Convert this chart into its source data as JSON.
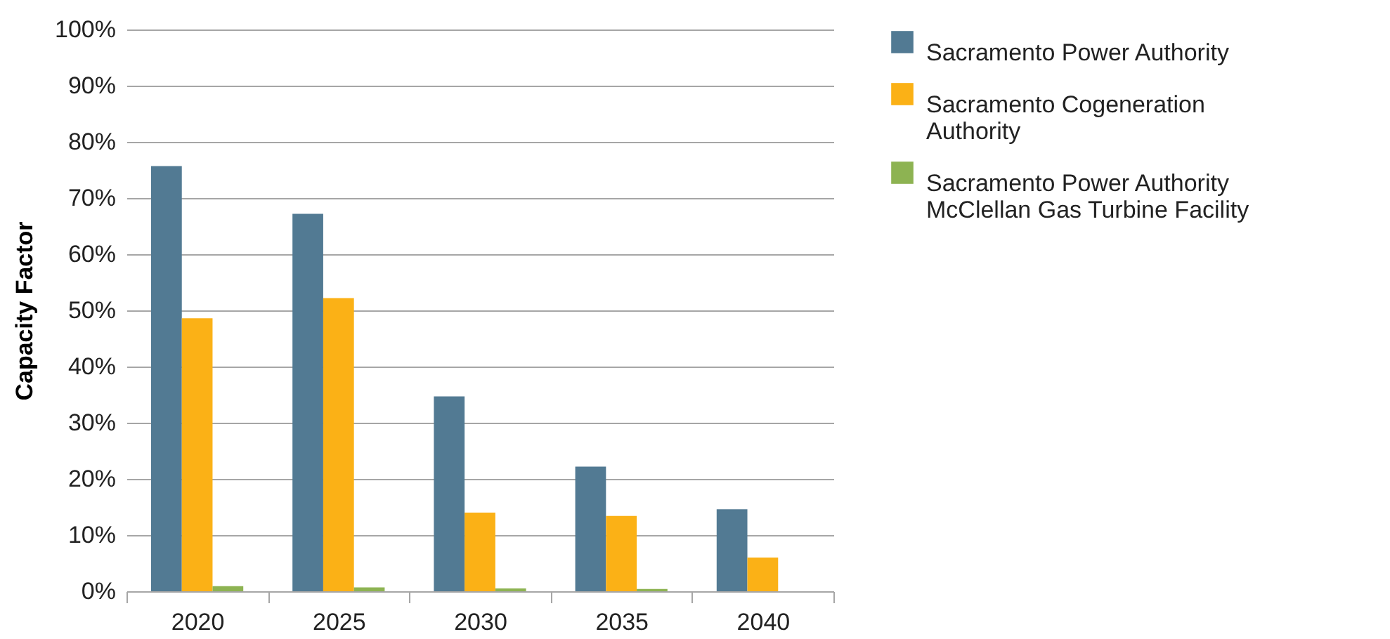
{
  "chart_data": {
    "type": "bar",
    "ylabel": "Capacity Factor",
    "categories": [
      "2020",
      "2025",
      "2030",
      "2035",
      "2040"
    ],
    "series": [
      {
        "name": "Sacramento Power Authority",
        "color": "#527a93",
        "values": [
          75.7,
          67.2,
          34.7,
          22.2,
          14.6
        ]
      },
      {
        "name": "Sacramento Cogeneration Authority",
        "color": "#fbb116",
        "values": [
          48.6,
          52.2,
          14.0,
          13.4,
          6.0
        ]
      },
      {
        "name": "Sacramento Power Authority McClellan Gas Turbine Facility",
        "color": "#8db352",
        "values": [
          0.9,
          0.7,
          0.5,
          0.4,
          0
        ]
      }
    ],
    "ylim": [
      0,
      100
    ],
    "yticks": [
      {
        "value": 0,
        "label": "0%"
      },
      {
        "value": 10,
        "label": "10%"
      },
      {
        "value": 20,
        "label": "20%"
      },
      {
        "value": 30,
        "label": "30%"
      },
      {
        "value": 40,
        "label": "40%"
      },
      {
        "value": 50,
        "label": "50%"
      },
      {
        "value": 60,
        "label": "60%"
      },
      {
        "value": 70,
        "label": "70%"
      },
      {
        "value": 80,
        "label": "80%"
      },
      {
        "value": 90,
        "label": "90%"
      },
      {
        "value": 100,
        "label": "100%"
      }
    ],
    "grid": "y",
    "legend": "right"
  }
}
